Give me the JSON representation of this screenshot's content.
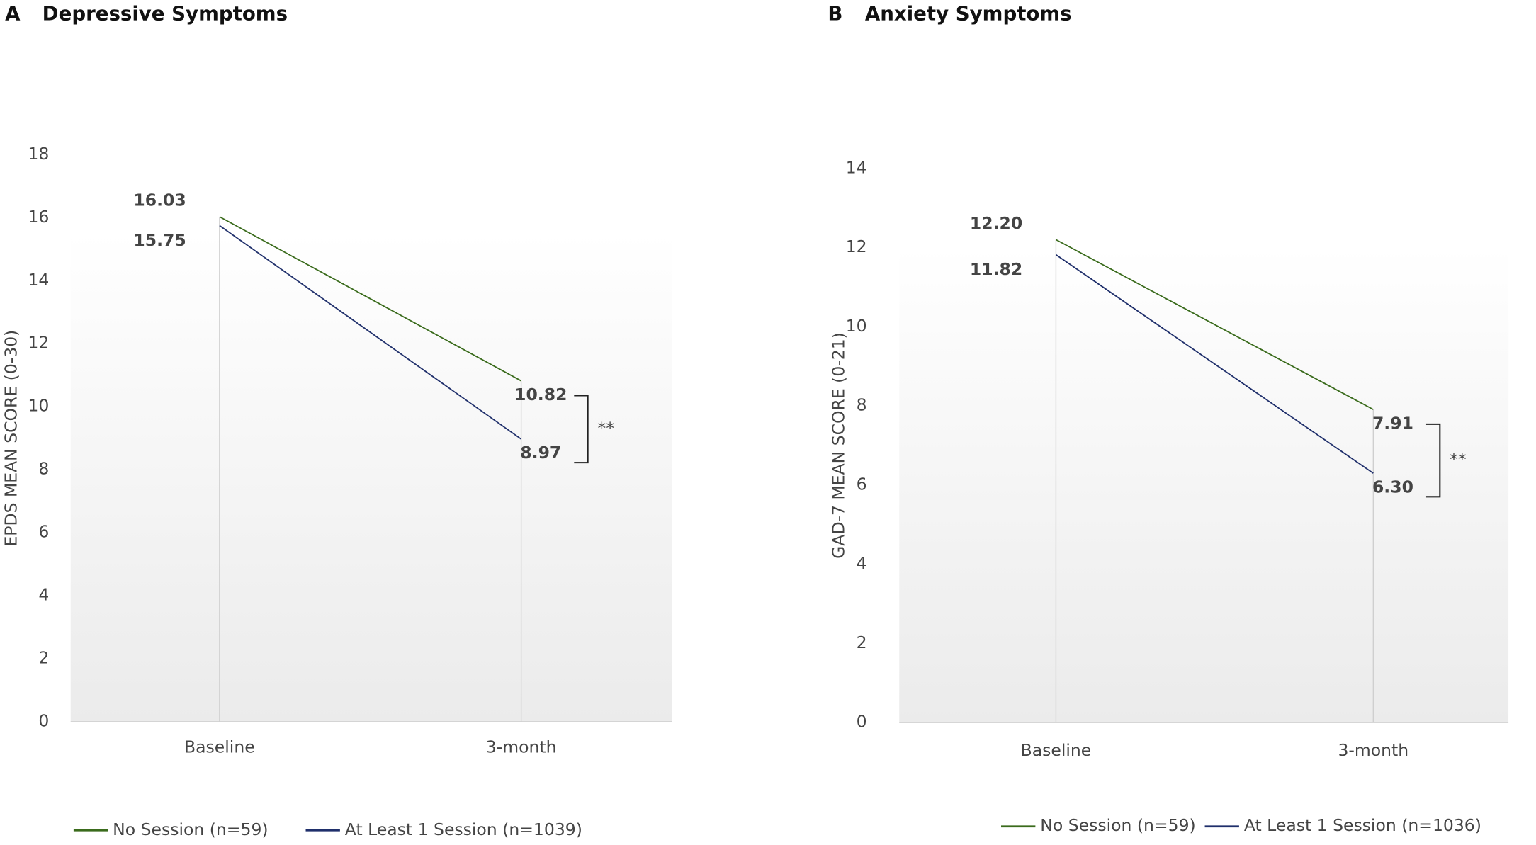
{
  "chart_data": [
    {
      "type": "line",
      "panel": "A",
      "title": "Depressive Symptoms",
      "ylabel": "EPDS MEAN SCORE (0-30)",
      "categories": [
        "Baseline",
        "3-month"
      ],
      "series": [
        {
          "name": "No Session (n=59)",
          "color": "#3a6b1c",
          "values": [
            16.03,
            10.82
          ]
        },
        {
          "name": "At Least 1 Session (n=1039)",
          "color": "#1f2f6b",
          "values": [
            15.75,
            8.97
          ]
        }
      ],
      "ylim": [
        0,
        18
      ],
      "yticks": [
        0,
        2,
        4,
        6,
        8,
        10,
        12,
        14,
        16,
        18
      ],
      "annotation": "**"
    },
    {
      "type": "line",
      "panel": "B",
      "title": "Anxiety Symptoms",
      "ylabel": "GAD-7 MEAN SCORE (0-21)",
      "categories": [
        "Baseline",
        "3-month"
      ],
      "series": [
        {
          "name": "No Session (n=59)",
          "color": "#3a6b1c",
          "values": [
            12.2,
            7.91
          ],
          "value_labels": [
            "12.20",
            "7.91"
          ]
        },
        {
          "name": "At Least 1 Session (n=1036)",
          "color": "#1f2f6b",
          "values": [
            11.82,
            6.3
          ],
          "value_labels": [
            "11.82",
            "6.30"
          ]
        }
      ],
      "ylim": [
        0,
        14
      ],
      "yticks": [
        0,
        2,
        4,
        6,
        8,
        10,
        12,
        14
      ],
      "annotation": "**"
    }
  ]
}
